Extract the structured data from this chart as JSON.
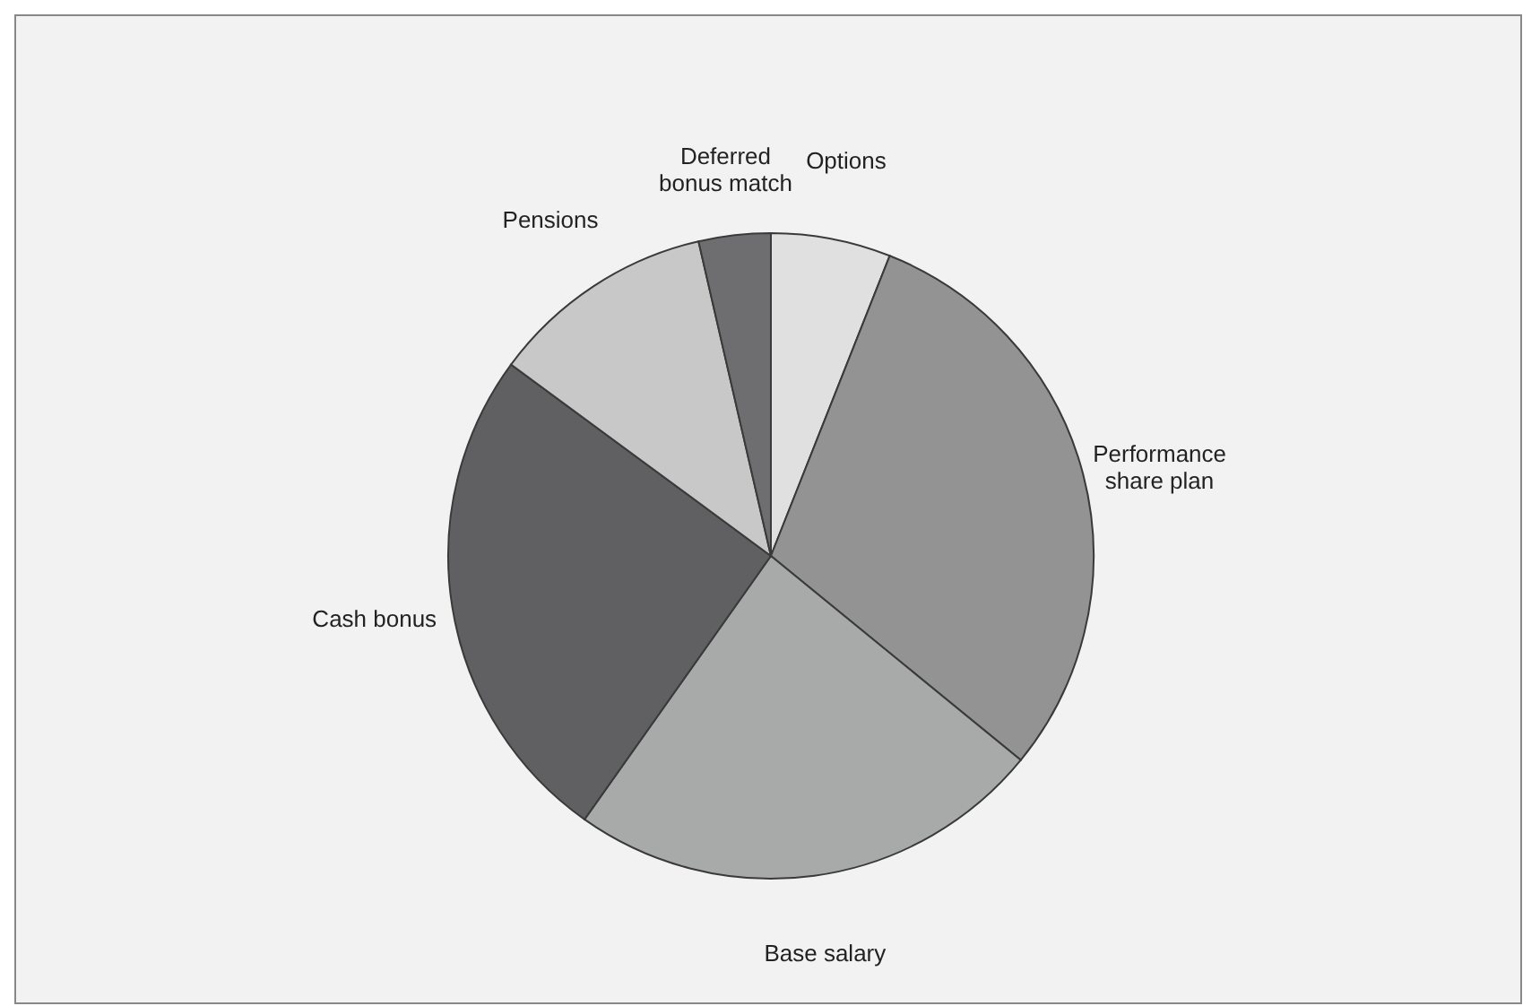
{
  "chart_data": {
    "type": "pie",
    "categories": [
      "Options",
      "Performance share plan",
      "Base salary",
      "Cash bonus",
      "Pensions",
      "Deferred bonus match"
    ],
    "values": [
      6.0,
      29.9,
      23.9,
      25.3,
      11.3,
      3.6
    ],
    "colors": [
      "#e0e0e0",
      "#939393",
      "#a8a9a9",
      "#606062",
      "#c8c8c8",
      "#6e6e70"
    ]
  }
}
